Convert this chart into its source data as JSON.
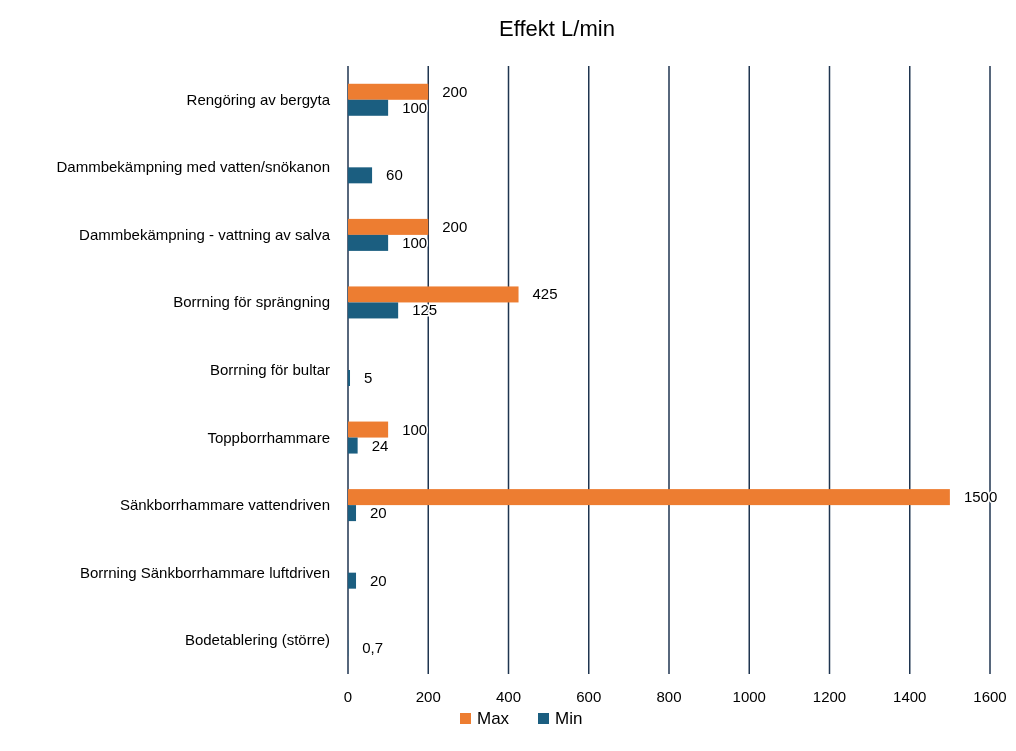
{
  "chart_data": {
    "type": "bar",
    "orientation": "horizontal",
    "title": "Effekt L/min",
    "categories": [
      "Rengöring av bergyta",
      "Dammbekämpning med vatten/snökanon",
      "Dammbekämpning - vattning av salva",
      "Borrning för sprängning",
      "Borrning för bultar",
      "Toppborrhammare ",
      "Sänkborrhammare vattendriven",
      "Borrning Sänkborrhammare luftdriven",
      "Bodetablering (större)"
    ],
    "series": [
      {
        "name": "Max",
        "color": "#ed7d31",
        "values": [
          200,
          null,
          200,
          425,
          null,
          100,
          1500,
          null,
          null
        ],
        "value_labels": [
          "200",
          null,
          "200",
          "425",
          null,
          "100",
          "1500",
          null,
          null
        ]
      },
      {
        "name": "Min",
        "color": "#1b5e80",
        "values": [
          100,
          60,
          100,
          125,
          5,
          24,
          20,
          20,
          0.7
        ],
        "value_labels": [
          "100",
          "60",
          "100",
          "125",
          "5",
          "24",
          "20",
          "20",
          "0,7"
        ]
      }
    ],
    "xlim": [
      0,
      1600
    ],
    "xticks": [
      0,
      200,
      400,
      600,
      800,
      1000,
      1200,
      1400,
      1600
    ],
    "grid": "x",
    "legend": "bottom"
  }
}
